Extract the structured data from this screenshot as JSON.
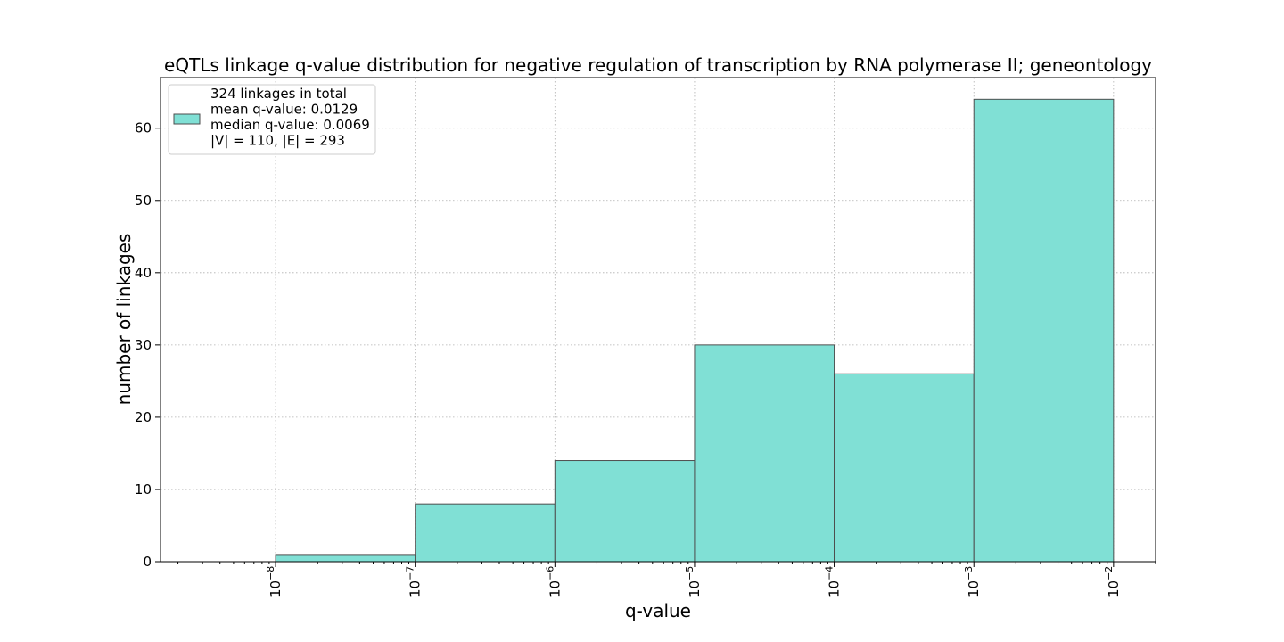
{
  "chart_data": {
    "type": "bar",
    "title": "eQTLs linkage q-value distribution for negative regulation of transcription by RNA polymerase II; geneontology",
    "xlabel": "q-value",
    "ylabel": "number of linkages",
    "x_scale": "log",
    "x_ticks": [
      {
        "value": 1e-08,
        "label": "10",
        "exp": "−8"
      },
      {
        "value": 1e-07,
        "label": "10",
        "exp": "−7"
      },
      {
        "value": 1e-06,
        "label": "10",
        "exp": "−6"
      },
      {
        "value": 1e-05,
        "label": "10",
        "exp": "−5"
      },
      {
        "value": 0.0001,
        "label": "10",
        "exp": "−4"
      },
      {
        "value": 0.001,
        "label": "10",
        "exp": "−3"
      },
      {
        "value": 0.01,
        "label": "10",
        "exp": "−2"
      }
    ],
    "xlim": [
      1.5e-09,
      0.02
    ],
    "ylim": [
      0,
      67
    ],
    "y_ticks": [
      0,
      10,
      20,
      30,
      40,
      50,
      60
    ],
    "bins": [
      {
        "from": 1e-08,
        "to": 1e-07,
        "count": 1
      },
      {
        "from": 1e-07,
        "to": 1e-06,
        "count": 8
      },
      {
        "from": 1e-06,
        "to": 1e-05,
        "count": 14
      },
      {
        "from": 1e-05,
        "to": 0.0001,
        "count": 30
      },
      {
        "from": 0.0001,
        "to": 0.001,
        "count": 26
      },
      {
        "from": 0.001,
        "to": 0.01,
        "count": 64
      }
    ],
    "bar_color": "#80e0d5",
    "edge_color": "#4d4d4d",
    "grid": true,
    "legend": {
      "placement": "top-left",
      "lines": [
        "324 linkages in total",
        "mean q-value: 0.0129",
        "median q-value: 0.0069",
        "|V| = 110, |E| = 293"
      ]
    }
  }
}
